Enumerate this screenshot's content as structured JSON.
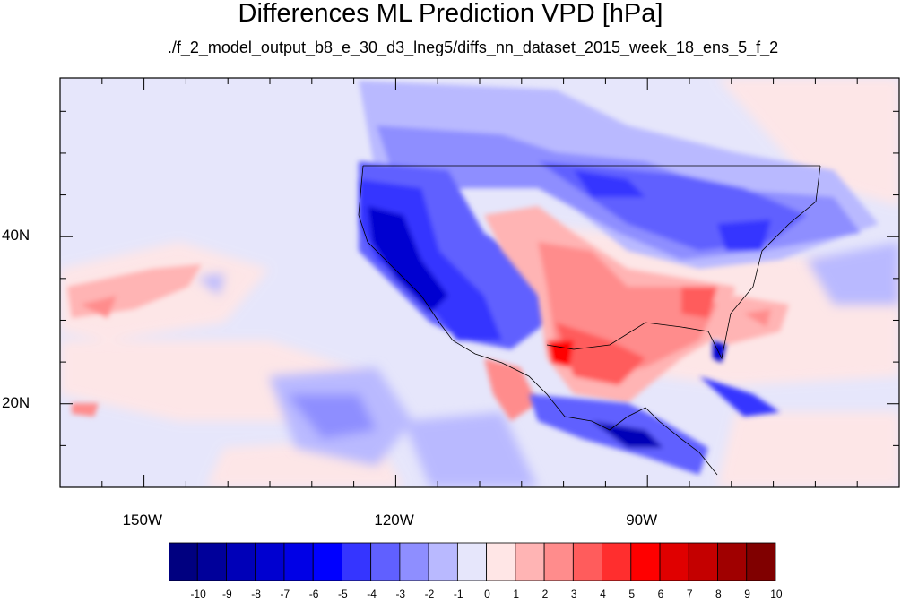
{
  "title": "Differences ML Prediction VPD [hPa]",
  "subtitle": "./f_2_model_output_b8_e_30_d3_lneg5/diffs_nn_dataset_2015_week_18_ens_5_f_2",
  "map": {
    "lon_range": [
      -160,
      -60
    ],
    "lat_range": [
      10,
      59
    ],
    "lat_labels": [
      {
        "lat": 40,
        "text": "40N"
      },
      {
        "lat": 20,
        "text": "20N"
      }
    ],
    "lon_labels": [
      {
        "lon": -150,
        "text": "150W"
      },
      {
        "lon": -120,
        "text": "120W"
      },
      {
        "lon": -90,
        "text": "90W"
      }
    ]
  },
  "colorbar": {
    "labels": [
      "-10",
      "-9",
      "-8",
      "-7",
      "-6",
      "-5",
      "-4",
      "-3",
      "-2",
      "-1",
      "0",
      "1",
      "2",
      "3",
      "4",
      "5",
      "6",
      "7",
      "8",
      "9",
      "10"
    ],
    "colors": [
      "#000080",
      "#00009a",
      "#0000b8",
      "#0000d0",
      "#0000e6",
      "#0000ff",
      "#3535ff",
      "#6060ff",
      "#8e8eff",
      "#b9b9ff",
      "#e6e6fb",
      "#ffe6e6",
      "#ffb4b4",
      "#ff8c8c",
      "#ff5c5c",
      "#ff2e2e",
      "#ff0000",
      "#e00000",
      "#c40000",
      "#a00000",
      "#800000"
    ]
  }
}
